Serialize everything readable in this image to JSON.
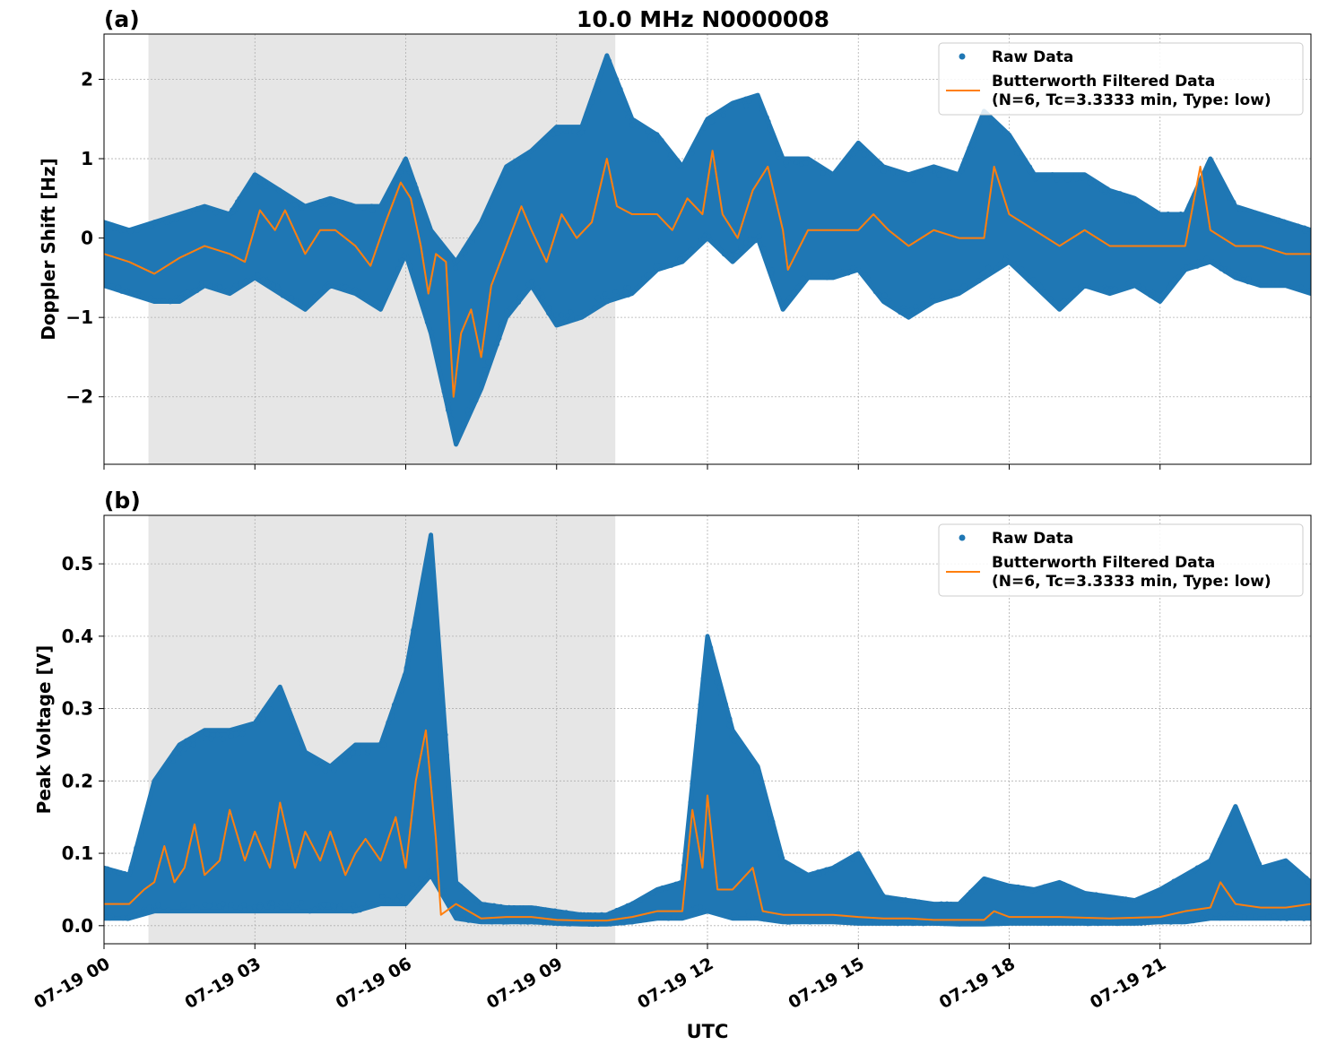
{
  "chart_data": {
    "title": "10.0 MHz N0000008",
    "xlabel": "UTC",
    "date": "07-19",
    "xlim": [
      "00:00",
      "24:00"
    ],
    "xticks": [
      "07-19 00",
      "07-19 03",
      "07-19 06",
      "07-19 09",
      "07-19 12",
      "07-19 15",
      "07-19 18",
      "07-19 21"
    ],
    "shaded_span": [
      "00:53",
      "10:10"
    ],
    "grid": true,
    "colors": {
      "raw": "#1f77b4",
      "filtered": "#ff7f0e",
      "shade": "#e6e6e6",
      "grid": "#b0b0b0"
    },
    "legend": {
      "placement": "upper right",
      "entries": [
        "Raw Data",
        "Butterworth Filtered Data",
        "(N=6, Tc=3.3333 min, Type: low)"
      ]
    },
    "panels": [
      {
        "label": "(a)",
        "type": "scatter+line",
        "ylabel": "Doppler Shift [Hz]",
        "ylim": [
          -2.85,
          2.57
        ],
        "yticks": [
          2,
          1,
          0,
          -1,
          -2
        ],
        "ytick_labels": [
          "2",
          "1",
          "0",
          "−1",
          "−2"
        ],
        "raw_range": [
          [
            "00:00",
            -0.6,
            0.2
          ],
          [
            "00:30",
            -0.7,
            0.1
          ],
          [
            "01:00",
            -0.8,
            0.2
          ],
          [
            "01:30",
            -0.8,
            0.3
          ],
          [
            "02:00",
            -0.6,
            0.4
          ],
          [
            "02:30",
            -0.7,
            0.3
          ],
          [
            "03:00",
            -0.5,
            0.8
          ],
          [
            "03:30",
            -0.7,
            0.6
          ],
          [
            "04:00",
            -0.9,
            0.4
          ],
          [
            "04:30",
            -0.6,
            0.5
          ],
          [
            "05:00",
            -0.7,
            0.4
          ],
          [
            "05:30",
            -0.9,
            0.4
          ],
          [
            "06:00",
            -0.2,
            1.0
          ],
          [
            "06:30",
            -1.2,
            0.1
          ],
          [
            "07:00",
            -2.6,
            -0.3
          ],
          [
            "07:30",
            -1.9,
            0.2
          ],
          [
            "08:00",
            -1.0,
            0.9
          ],
          [
            "08:30",
            -0.6,
            1.1
          ],
          [
            "09:00",
            -1.1,
            1.4
          ],
          [
            "09:30",
            -1.0,
            1.4
          ],
          [
            "10:00",
            -0.8,
            2.3
          ],
          [
            "10:30",
            -0.7,
            1.5
          ],
          [
            "11:00",
            -0.4,
            1.3
          ],
          [
            "11:30",
            -0.3,
            0.9
          ],
          [
            "12:00",
            0.0,
            1.5
          ],
          [
            "12:30",
            -0.3,
            1.7
          ],
          [
            "13:00",
            0.0,
            1.8
          ],
          [
            "13:30",
            -0.9,
            1.0
          ],
          [
            "14:00",
            -0.5,
            1.0
          ],
          [
            "14:30",
            -0.5,
            0.8
          ],
          [
            "15:00",
            -0.4,
            1.2
          ],
          [
            "15:30",
            -0.8,
            0.9
          ],
          [
            "16:00",
            -1.0,
            0.8
          ],
          [
            "16:30",
            -0.8,
            0.9
          ],
          [
            "17:00",
            -0.7,
            0.8
          ],
          [
            "17:30",
            -0.5,
            1.6
          ],
          [
            "18:00",
            -0.3,
            1.3
          ],
          [
            "18:30",
            -0.6,
            0.8
          ],
          [
            "19:00",
            -0.9,
            0.8
          ],
          [
            "19:30",
            -0.6,
            0.8
          ],
          [
            "20:00",
            -0.7,
            0.6
          ],
          [
            "20:30",
            -0.6,
            0.5
          ],
          [
            "21:00",
            -0.8,
            0.3
          ],
          [
            "21:30",
            -0.4,
            0.3
          ],
          [
            "22:00",
            -0.3,
            1.0
          ],
          [
            "22:30",
            -0.5,
            0.4
          ],
          [
            "23:00",
            -0.6,
            0.3
          ],
          [
            "23:30",
            -0.6,
            0.2
          ],
          [
            "24:00",
            -0.7,
            0.1
          ]
        ],
        "filtered": [
          [
            "00:00",
            -0.2
          ],
          [
            "00:30",
            -0.3
          ],
          [
            "01:00",
            -0.45
          ],
          [
            "01:30",
            -0.25
          ],
          [
            "02:00",
            -0.1
          ],
          [
            "02:30",
            -0.2
          ],
          [
            "02:48",
            -0.3
          ],
          [
            "03:06",
            0.35
          ],
          [
            "03:24",
            0.1
          ],
          [
            "03:36",
            0.35
          ],
          [
            "04:00",
            -0.2
          ],
          [
            "04:18",
            0.1
          ],
          [
            "04:36",
            0.1
          ],
          [
            "05:00",
            -0.1
          ],
          [
            "05:18",
            -0.35
          ],
          [
            "05:36",
            0.2
          ],
          [
            "05:54",
            0.7
          ],
          [
            "06:06",
            0.5
          ],
          [
            "06:18",
            -0.1
          ],
          [
            "06:27",
            -0.7
          ],
          [
            "06:36",
            -0.2
          ],
          [
            "06:48",
            -0.3
          ],
          [
            "06:57",
            -2.0
          ],
          [
            "07:06",
            -1.2
          ],
          [
            "07:18",
            -0.9
          ],
          [
            "07:30",
            -1.5
          ],
          [
            "07:42",
            -0.6
          ],
          [
            "08:00",
            -0.1
          ],
          [
            "08:18",
            0.4
          ],
          [
            "08:30",
            0.1
          ],
          [
            "08:48",
            -0.3
          ],
          [
            "09:06",
            0.3
          ],
          [
            "09:24",
            0.0
          ],
          [
            "09:42",
            0.2
          ],
          [
            "10:00",
            1.0
          ],
          [
            "10:12",
            0.4
          ],
          [
            "10:30",
            0.3
          ],
          [
            "11:00",
            0.3
          ],
          [
            "11:18",
            0.1
          ],
          [
            "11:36",
            0.5
          ],
          [
            "11:54",
            0.3
          ],
          [
            "12:06",
            1.1
          ],
          [
            "12:18",
            0.3
          ],
          [
            "12:36",
            0.0
          ],
          [
            "12:54",
            0.6
          ],
          [
            "13:12",
            0.9
          ],
          [
            "13:30",
            0.1
          ],
          [
            "13:36",
            -0.4
          ],
          [
            "14:00",
            0.1
          ],
          [
            "14:30",
            0.1
          ],
          [
            "15:00",
            0.1
          ],
          [
            "15:18",
            0.3
          ],
          [
            "15:36",
            0.1
          ],
          [
            "16:00",
            -0.1
          ],
          [
            "16:30",
            0.1
          ],
          [
            "17:00",
            0.0
          ],
          [
            "17:30",
            0.0
          ],
          [
            "17:42",
            0.9
          ],
          [
            "18:00",
            0.3
          ],
          [
            "18:30",
            0.1
          ],
          [
            "19:00",
            -0.1
          ],
          [
            "19:30",
            0.1
          ],
          [
            "20:00",
            -0.1
          ],
          [
            "20:30",
            -0.1
          ],
          [
            "21:00",
            -0.1
          ],
          [
            "21:30",
            -0.1
          ],
          [
            "21:48",
            0.9
          ],
          [
            "22:00",
            0.1
          ],
          [
            "22:30",
            -0.1
          ],
          [
            "23:00",
            -0.1
          ],
          [
            "23:30",
            -0.2
          ],
          [
            "24:00",
            -0.2
          ]
        ]
      },
      {
        "label": "(b)",
        "type": "scatter+line",
        "ylabel": "Peak Voltage [V]",
        "ylim": [
          -0.025,
          0.567
        ],
        "yticks": [
          0.0,
          0.1,
          0.2,
          0.3,
          0.4,
          0.5
        ],
        "ytick_labels": [
          "0.0",
          "0.1",
          "0.2",
          "0.3",
          "0.4",
          "0.5"
        ],
        "raw_range": [
          [
            "00:00",
            0.01,
            0.08
          ],
          [
            "00:30",
            0.01,
            0.07
          ],
          [
            "01:00",
            0.02,
            0.2
          ],
          [
            "01:30",
            0.02,
            0.25
          ],
          [
            "02:00",
            0.02,
            0.27
          ],
          [
            "02:30",
            0.02,
            0.27
          ],
          [
            "03:00",
            0.02,
            0.28
          ],
          [
            "03:30",
            0.02,
            0.33
          ],
          [
            "04:00",
            0.02,
            0.24
          ],
          [
            "04:30",
            0.02,
            0.22
          ],
          [
            "05:00",
            0.02,
            0.25
          ],
          [
            "05:30",
            0.03,
            0.25
          ],
          [
            "06:00",
            0.03,
            0.35
          ],
          [
            "06:30",
            0.07,
            0.54
          ],
          [
            "07:00",
            0.01,
            0.06
          ],
          [
            "07:30",
            0.005,
            0.03
          ],
          [
            "08:00",
            0.005,
            0.025
          ],
          [
            "08:30",
            0.005,
            0.025
          ],
          [
            "09:00",
            0.003,
            0.02
          ],
          [
            "09:30",
            0.002,
            0.015
          ],
          [
            "10:00",
            0.002,
            0.015
          ],
          [
            "10:30",
            0.005,
            0.03
          ],
          [
            "11:00",
            0.01,
            0.05
          ],
          [
            "11:30",
            0.01,
            0.06
          ],
          [
            "12:00",
            0.02,
            0.4
          ],
          [
            "12:30",
            0.01,
            0.27
          ],
          [
            "13:00",
            0.01,
            0.22
          ],
          [
            "13:30",
            0.005,
            0.09
          ],
          [
            "14:00",
            0.005,
            0.07
          ],
          [
            "14:30",
            0.005,
            0.08
          ],
          [
            "15:00",
            0.003,
            0.1
          ],
          [
            "15:30",
            0.003,
            0.04
          ],
          [
            "16:00",
            0.003,
            0.035
          ],
          [
            "16:30",
            0.003,
            0.03
          ],
          [
            "17:00",
            0.002,
            0.03
          ],
          [
            "17:30",
            0.002,
            0.065
          ],
          [
            "18:00",
            0.003,
            0.055
          ],
          [
            "18:30",
            0.003,
            0.05
          ],
          [
            "19:00",
            0.003,
            0.06
          ],
          [
            "19:30",
            0.003,
            0.045
          ],
          [
            "20:00",
            0.003,
            0.04
          ],
          [
            "20:30",
            0.003,
            0.035
          ],
          [
            "21:00",
            0.005,
            0.05
          ],
          [
            "21:30",
            0.005,
            0.07
          ],
          [
            "22:00",
            0.01,
            0.09
          ],
          [
            "22:30",
            0.01,
            0.165
          ],
          [
            "23:00",
            0.01,
            0.08
          ],
          [
            "23:30",
            0.01,
            0.09
          ],
          [
            "24:00",
            0.01,
            0.06
          ]
        ],
        "filtered": [
          [
            "00:00",
            0.03
          ],
          [
            "00:30",
            0.03
          ],
          [
            "00:48",
            0.05
          ],
          [
            "01:00",
            0.06
          ],
          [
            "01:12",
            0.11
          ],
          [
            "01:24",
            0.06
          ],
          [
            "01:36",
            0.08
          ],
          [
            "01:48",
            0.14
          ],
          [
            "02:00",
            0.07
          ],
          [
            "02:18",
            0.09
          ],
          [
            "02:30",
            0.16
          ],
          [
            "02:48",
            0.09
          ],
          [
            "03:00",
            0.13
          ],
          [
            "03:18",
            0.08
          ],
          [
            "03:30",
            0.17
          ],
          [
            "03:48",
            0.08
          ],
          [
            "04:00",
            0.13
          ],
          [
            "04:18",
            0.09
          ],
          [
            "04:30",
            0.13
          ],
          [
            "04:48",
            0.07
          ],
          [
            "05:00",
            0.1
          ],
          [
            "05:12",
            0.12
          ],
          [
            "05:30",
            0.09
          ],
          [
            "05:48",
            0.15
          ],
          [
            "06:00",
            0.08
          ],
          [
            "06:12",
            0.2
          ],
          [
            "06:24",
            0.27
          ],
          [
            "06:36",
            0.12
          ],
          [
            "06:42",
            0.015
          ],
          [
            "07:00",
            0.03
          ],
          [
            "07:30",
            0.01
          ],
          [
            "08:00",
            0.012
          ],
          [
            "08:30",
            0.012
          ],
          [
            "09:00",
            0.008
          ],
          [
            "09:30",
            0.007
          ],
          [
            "10:00",
            0.007
          ],
          [
            "10:30",
            0.012
          ],
          [
            "11:00",
            0.02
          ],
          [
            "11:30",
            0.02
          ],
          [
            "11:42",
            0.16
          ],
          [
            "11:54",
            0.08
          ],
          [
            "12:00",
            0.18
          ],
          [
            "12:12",
            0.05
          ],
          [
            "12:30",
            0.05
          ],
          [
            "12:54",
            0.08
          ],
          [
            "13:06",
            0.02
          ],
          [
            "13:30",
            0.015
          ],
          [
            "14:00",
            0.015
          ],
          [
            "14:30",
            0.015
          ],
          [
            "15:00",
            0.012
          ],
          [
            "15:30",
            0.01
          ],
          [
            "16:00",
            0.01
          ],
          [
            "16:30",
            0.008
          ],
          [
            "17:00",
            0.008
          ],
          [
            "17:30",
            0.008
          ],
          [
            "17:42",
            0.02
          ],
          [
            "18:00",
            0.012
          ],
          [
            "19:00",
            0.012
          ],
          [
            "20:00",
            0.01
          ],
          [
            "21:00",
            0.012
          ],
          [
            "21:30",
            0.02
          ],
          [
            "22:00",
            0.025
          ],
          [
            "22:12",
            0.06
          ],
          [
            "22:30",
            0.03
          ],
          [
            "23:00",
            0.025
          ],
          [
            "23:30",
            0.025
          ],
          [
            "24:00",
            0.03
          ]
        ]
      }
    ]
  }
}
